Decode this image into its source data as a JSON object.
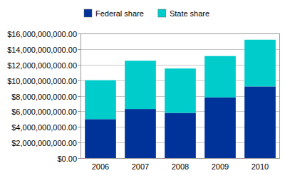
{
  "chart_data": {
    "type": "bar",
    "stacked": true,
    "grid": true,
    "legend": "top",
    "categories": [
      "2006",
      "2007",
      "2008",
      "2009",
      "2010"
    ],
    "series": [
      {
        "name": "Federal share",
        "color": "#003399",
        "values": [
          5000000000,
          6300000000,
          5800000000,
          7800000000,
          9200000000
        ]
      },
      {
        "name": "State share",
        "color": "#00cccc",
        "values": [
          5000000000,
          6200000000,
          5700000000,
          5300000000,
          6000000000
        ]
      }
    ],
    "ylim": [
      0,
      16000000000
    ],
    "yticks": [
      {
        "value": 0,
        "label": "$0.00"
      },
      {
        "value": 2000000000,
        "label": "$2,000,000,000.00"
      },
      {
        "value": 4000000000,
        "label": "$4,000,000,000.00"
      },
      {
        "value": 6000000000,
        "label": "$6,000,000,000.00"
      },
      {
        "value": 8000000000,
        "label": "$8,000,000,000.00"
      },
      {
        "value": 10000000000,
        "label": "$10,000,000,000.00"
      },
      {
        "value": 12000000000,
        "label": "$12,000,000,000.00"
      },
      {
        "value": 14000000000,
        "label": "$14,000,000,000.00"
      },
      {
        "value": 16000000000,
        "label": "$16,000,000,000.00"
      }
    ]
  }
}
